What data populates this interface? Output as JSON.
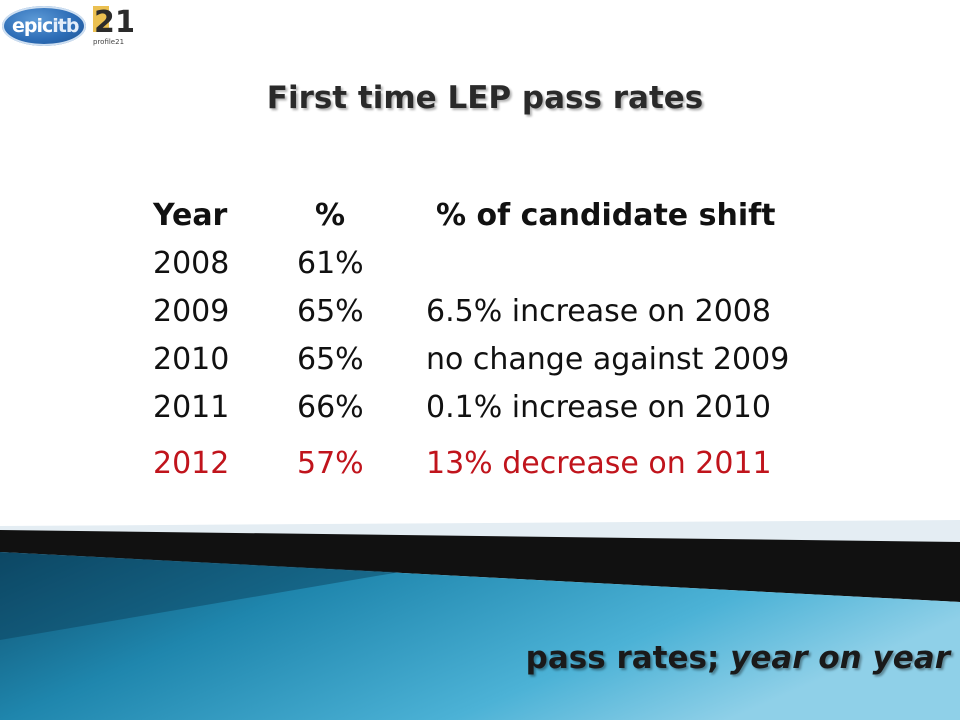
{
  "logos": {
    "epic_text_1": "epic",
    "epic_text_2": "itb",
    "profile_number": "21",
    "profile_text": "profile21"
  },
  "slide": {
    "title": "First time LEP pass rates",
    "table": {
      "headers": [
        "Year",
        "%",
        "% of candidate shift"
      ],
      "rows": [
        {
          "year": "2008",
          "pct": "61%",
          "shift": ""
        },
        {
          "year": "2009",
          "pct": "65%",
          "shift": "6.5% increase on 2008"
        },
        {
          "year": "2010",
          "pct": "65%",
          "shift": "no change against 2009"
        },
        {
          "year": "2011",
          "pct": "66%",
          "shift": "0.1% increase on 2010"
        },
        {
          "year": "2012",
          "pct": "57%",
          "shift": "13% decrease on 2011"
        }
      ]
    },
    "highlight_color": "#c0141c",
    "footer": {
      "normal": "pass rates; ",
      "italic": "year on year"
    }
  }
}
